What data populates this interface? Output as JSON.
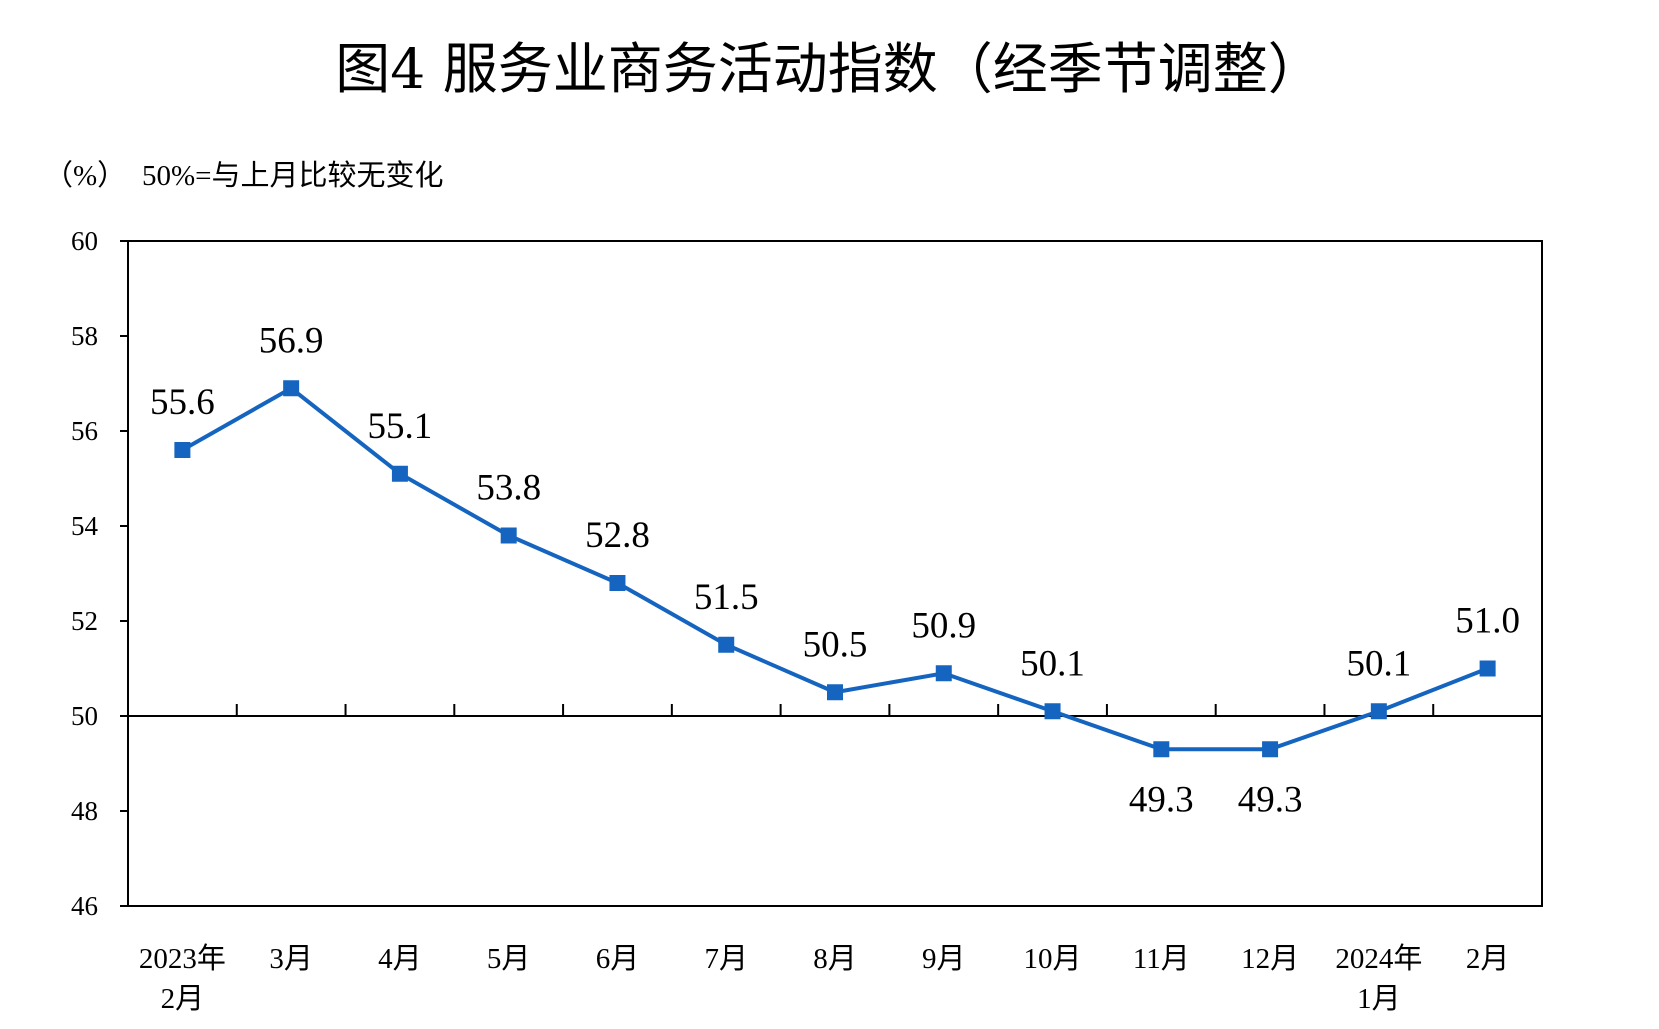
{
  "chart_data": {
    "type": "line",
    "title": "图4  服务业商务活动指数（经季节调整）",
    "unit_label": "（%）",
    "note": "50%=与上月比较无变化",
    "categories": [
      [
        "2023年",
        "2月"
      ],
      [
        "3月"
      ],
      [
        "4月"
      ],
      [
        "5月"
      ],
      [
        "6月"
      ],
      [
        "7月"
      ],
      [
        "8月"
      ],
      [
        "9月"
      ],
      [
        "10月"
      ],
      [
        "11月"
      ],
      [
        "12月"
      ],
      [
        "2024年",
        "1月"
      ],
      [
        "2月"
      ]
    ],
    "series": [
      {
        "values": [
          55.6,
          56.9,
          55.1,
          53.8,
          52.8,
          51.5,
          50.5,
          50.9,
          50.1,
          49.3,
          49.3,
          50.1,
          51.0
        ],
        "value_labels": [
          "55.6",
          "56.9",
          "55.1",
          "53.8",
          "52.8",
          "51.5",
          "50.5",
          "50.9",
          "50.1",
          "49.3",
          "49.3",
          "50.1",
          "51.0"
        ],
        "color": "#1565c0"
      }
    ],
    "ylim": [
      46,
      60
    ],
    "yticks": [
      46,
      48,
      50,
      52,
      54,
      56,
      58,
      60
    ],
    "reference_line": 50,
    "grid": false,
    "legend": "none"
  }
}
